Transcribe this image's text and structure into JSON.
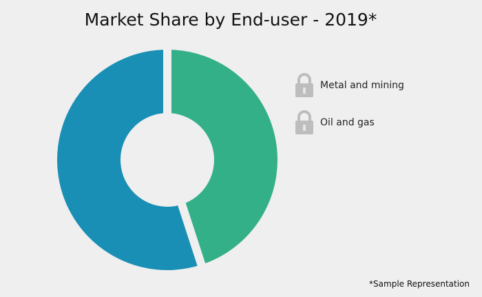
{
  "chart_data": {
    "type": "pie",
    "variant": "donut",
    "title": "Market Share by End-user - 2019*",
    "slices": [
      {
        "value": 45,
        "color": "#34b088"
      },
      {
        "value": 55,
        "color": "#1a8fb5"
      }
    ],
    "legend": {
      "position": "right",
      "locked": true,
      "entries": [
        {
          "label": "Metal and mining",
          "icon": "lock-icon"
        },
        {
          "label": "Oil and gas",
          "icon": "lock-icon"
        }
      ]
    },
    "footnote": "*Sample Representation"
  }
}
